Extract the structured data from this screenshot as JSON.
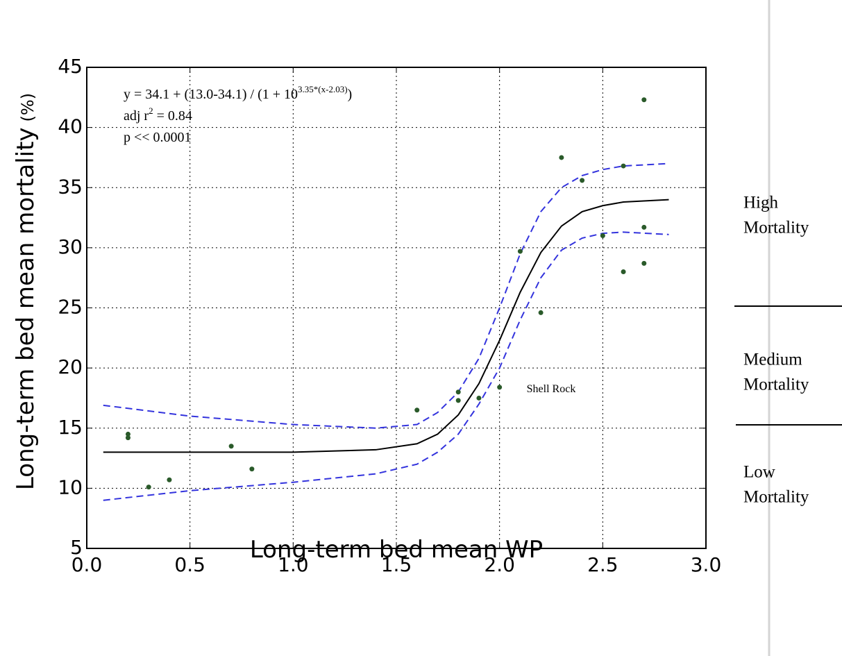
{
  "chart_data": {
    "type": "scatter",
    "x_label": "Long-term bed mean WP",
    "y_label": "Long-term bed mean mortality",
    "y_label_unit": "(%)",
    "xlim": [
      0,
      3
    ],
    "ylim": [
      5,
      45
    ],
    "xticks": [
      {
        "value": 0,
        "label": "0.0"
      },
      0.5,
      {
        "value": 1,
        "label": "1.0"
      },
      1.5,
      {
        "value": 2,
        "label": "2.0"
      },
      2.5,
      {
        "value": 3,
        "label": "3.0"
      }
    ],
    "yticks": [
      5,
      10,
      15,
      20,
      25,
      30,
      35,
      40,
      45
    ],
    "grid": true,
    "points": {
      "color": "#2a5a2a",
      "x": [
        0.2,
        0.2,
        0.3,
        0.4,
        0.7,
        0.8,
        1.6,
        1.8,
        1.8,
        1.9,
        2.0,
        2.1,
        2.2,
        2.3,
        2.4,
        2.5,
        2.6,
        2.6,
        2.7,
        2.7,
        2.7
      ],
      "y": [
        14.5,
        14.2,
        10.1,
        10.7,
        13.5,
        11.6,
        16.5,
        18.0,
        17.3,
        17.5,
        18.4,
        29.7,
        24.6,
        37.5,
        35.6,
        31.0,
        36.8,
        28.0,
        42.3,
        31.7,
        28.7
      ]
    },
    "fit": {
      "color": "#000000",
      "x": [
        0.08,
        1.0,
        1.4,
        1.6,
        1.7,
        1.8,
        1.9,
        2.0,
        2.1,
        2.2,
        2.3,
        2.4,
        2.5,
        2.6,
        2.82
      ],
      "y": [
        13.0,
        13.0,
        13.2,
        13.7,
        14.5,
        16.1,
        18.7,
        22.3,
        26.3,
        29.6,
        31.8,
        33.0,
        33.5,
        33.8,
        34.0
      ]
    },
    "upper_band": {
      "color": "#3333dd",
      "x": [
        0.08,
        0.5,
        1.0,
        1.4,
        1.6,
        1.7,
        1.8,
        1.9,
        2.0,
        2.1,
        2.2,
        2.3,
        2.4,
        2.5,
        2.6,
        2.82
      ],
      "y": [
        16.9,
        16.0,
        15.3,
        15.0,
        15.3,
        16.3,
        18.0,
        20.8,
        25.0,
        29.5,
        33.0,
        35.0,
        36.0,
        36.5,
        36.8,
        37.0
      ]
    },
    "lower_band": {
      "color": "#3333dd",
      "x": [
        0.08,
        0.5,
        1.0,
        1.4,
        1.6,
        1.7,
        1.8,
        1.9,
        2.0,
        2.1,
        2.2,
        2.3,
        2.4,
        2.5,
        2.6,
        2.82
      ],
      "y": [
        9.0,
        9.8,
        10.5,
        11.2,
        12.0,
        13.0,
        14.5,
        17.0,
        20.0,
        24.0,
        27.5,
        29.8,
        30.8,
        31.2,
        31.3,
        31.1
      ]
    },
    "equation": {
      "base": "y = 34.1 + (13.0-34.1) / (1 + 10",
      "sup": "3.35*(x-2.03)",
      "end": ")"
    },
    "r2": {
      "base": "adj r",
      "sup": "2",
      "end": " = 0.84"
    },
    "p_value": "p << 0.0001",
    "annotation": {
      "text": "Shell Rock",
      "x": 2.25,
      "y": 18.2
    }
  },
  "zones": [
    [
      "High",
      "Mortality"
    ],
    [
      "Medium",
      "Mortality"
    ],
    [
      "Low",
      "Mortality"
    ]
  ]
}
